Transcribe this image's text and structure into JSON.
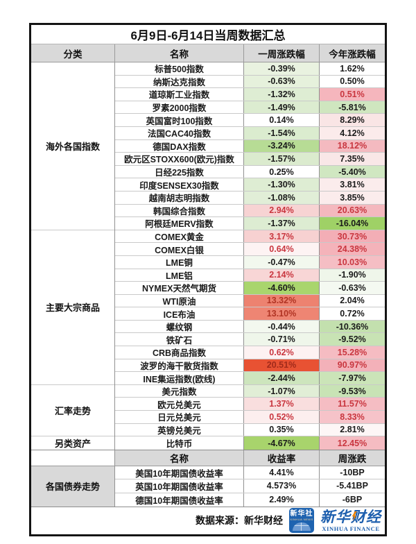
{
  "page": {
    "title": "6月9日-6月14日当周数据汇总",
    "source_note": "数据来源：新华财经"
  },
  "colors": {
    "header_bg": "#d9d9d9",
    "red_text": "#c9363f",
    "brick_text": "#b03424",
    "deep_red_text": "#a12a1a",
    "black_text": "#1a1a1a",
    "logo_blue": "#1d5fae",
    "accent_orange": "#f08300"
  },
  "main_table": {
    "headers": {
      "category": "分类",
      "name": "名称",
      "week": "一周涨跌幅",
      "year": "今年涨跌幅"
    },
    "sections": [
      {
        "label": "海外各国指数",
        "rows": [
          {
            "name": "标普500指数",
            "week": "-0.39%",
            "week_bg": "#e9f2e0",
            "year": "1.62%",
            "year_bg": "#ffffff"
          },
          {
            "name": "纳斯达克指数",
            "week": "-0.63%",
            "week_bg": "#e6f1dc",
            "year": "0.50%",
            "year_bg": "#ffffff"
          },
          {
            "name": "道琼斯工业指数",
            "week": "-1.32%",
            "week_bg": "#deedd3",
            "year": "0.51%",
            "year_bg": "#f5b6bd",
            "year_fg": "red"
          },
          {
            "name": "罗素2000指数",
            "week": "-1.49%",
            "week_bg": "#dcecd0",
            "year": "-5.81%",
            "year_bg": "#cfe6bf"
          },
          {
            "name": "英国富时100指数",
            "week": "0.14%",
            "week_bg": "#ffffff",
            "year": "8.29%",
            "year_bg": "#f9e5e5"
          },
          {
            "name": "法国CAC40指数",
            "week": "-1.54%",
            "week_bg": "#dbeccf",
            "year": "4.12%",
            "year_bg": "#fbebeb"
          },
          {
            "name": "德国DAX指数",
            "week": "-3.24%",
            "week_bg": "#b7dc95",
            "year": "18.12%",
            "year_bg": "#f4bac0",
            "year_fg": "red"
          },
          {
            "name": "欧元区STOXX600(欧元)指数",
            "week": "-1.57%",
            "week_bg": "#dbebce",
            "year": "7.35%",
            "year_bg": "#f9e7e7"
          },
          {
            "name": "日经225指数",
            "week": "0.25%",
            "week_bg": "#ffffff",
            "year": "-5.40%",
            "year_bg": "#d0e7c1"
          },
          {
            "name": "印度SENSEX30指数",
            "week": "-1.30%",
            "week_bg": "#deedd3",
            "year": "3.81%",
            "year_bg": "#fbecec"
          },
          {
            "name": "越南胡志明指数",
            "week": "-1.08%",
            "week_bg": "#e1eed7",
            "year": "3.85%",
            "year_bg": "#fbecec"
          },
          {
            "name": "韩国综合指数",
            "week": "2.94%",
            "week_bg": "#f7d3d3",
            "week_fg": "red",
            "year": "20.63%",
            "year_bg": "#f4b8be",
            "year_fg": "red"
          },
          {
            "name": "阿根廷MERV指数",
            "week": "-1.37%",
            "week_bg": "#ddecd2",
            "year": "-16.04%",
            "year_bg": "#9fd166"
          }
        ]
      },
      {
        "label": "主要大宗商品",
        "rows": [
          {
            "name": "COMEX黄金",
            "week": "3.17%",
            "week_bg": "#f7d1d1",
            "week_fg": "red",
            "year": "30.73%",
            "year_bg": "#f3aeb6",
            "year_fg": "red"
          },
          {
            "name": "COMEX白银",
            "week": "0.64%",
            "week_bg": "#fdf3f3",
            "week_fg": "red",
            "year": "24.38%",
            "year_bg": "#f4b3ba",
            "year_fg": "red"
          },
          {
            "name": "LME铜",
            "week": "-0.47%",
            "week_bg": "#f2f8ee",
            "year": "10.03%",
            "year_bg": "#f5bec4",
            "year_fg": "red"
          },
          {
            "name": "LME铝",
            "week": "2.14%",
            "week_bg": "#f8d6d6",
            "week_fg": "red",
            "year": "-1.90%",
            "year_bg": "#eff6ea"
          },
          {
            "name": "NYMEX天然气期货",
            "week": "-4.60%",
            "week_bg": "#a9d56d",
            "year": "-0.63%",
            "year_bg": "#f4f9f1"
          },
          {
            "name": "WTI原油",
            "week": "13.32%",
            "week_bg": "#ed8270",
            "week_fg": "brick",
            "year": "2.04%",
            "year_bg": "#ffffff"
          },
          {
            "name": "ICE布油",
            "week": "13.10%",
            "week_bg": "#ee8573",
            "week_fg": "brick",
            "year": "0.72%",
            "year_bg": "#ffffff"
          },
          {
            "name": "螺纹钢",
            "week": "-0.44%",
            "week_bg": "#f3f8ef",
            "year": "-10.36%",
            "year_bg": "#c3e0ae"
          },
          {
            "name": "铁矿石",
            "week": "-0.71%",
            "week_bg": "#eff6ea",
            "year": "-9.52%",
            "year_bg": "#c8e3b4"
          },
          {
            "name": "CRB商品指数",
            "week": "0.62%",
            "week_bg": "#fdf2f2",
            "week_fg": "red",
            "year": "15.28%",
            "year_bg": "#f5bcc2",
            "year_fg": "red"
          },
          {
            "name": "波罗的海干散货指数",
            "week": "20.51%",
            "week_bg": "#e85233",
            "week_fg": "deep",
            "year": "90.97%",
            "year_bg": "#f3b1b9",
            "year_fg": "red"
          },
          {
            "name": "INE集运指数(欧线)",
            "week": "-2.44%",
            "week_bg": "#cde5bd",
            "year": "-7.97%",
            "year_bg": "#cbe4b8"
          }
        ]
      },
      {
        "label": "汇率走势",
        "rows": [
          {
            "name": "美元指数",
            "week": "-1.07%",
            "week_bg": "#e1eed6",
            "year": "-9.53%",
            "year_bg": "#c8e3b5"
          },
          {
            "name": "欧元兑美元",
            "week": "1.37%",
            "week_bg": "#f9dede",
            "week_fg": "red",
            "year": "11.57%",
            "year_bg": "#f5bdc3",
            "year_fg": "red"
          },
          {
            "name": "日元兑美元",
            "week": "0.52%",
            "week_bg": "#fceeee",
            "week_fg": "red",
            "year": "8.33%",
            "year_bg": "#f6c3c9",
            "year_fg": "red"
          },
          {
            "name": "英镑兑美元",
            "week": "0.35%",
            "week_bg": "#ffffff",
            "year": "2.81%",
            "year_bg": "#fdf6f6"
          }
        ]
      },
      {
        "label": "另类资产",
        "rows": [
          {
            "name": "比特币",
            "week": "-4.67%",
            "week_bg": "#a8d46c",
            "year": "12.45%",
            "year_bg": "#f5bcc2",
            "year_fg": "red"
          }
        ]
      }
    ]
  },
  "bond_table": {
    "section_label": "各国债券走势",
    "headers": {
      "name": "名称",
      "yield": "收益率",
      "week": "周涨跌"
    },
    "rows": [
      {
        "name": "美国10年期国债收益率",
        "yield": "4.41%",
        "week_change": "-10BP"
      },
      {
        "name": "英国10年期国债收益率",
        "yield": "4.573%",
        "week_change": "-5.41BP"
      },
      {
        "name": "德国10年期国债收益率",
        "yield": "2.49%",
        "week_change": "-6BP"
      }
    ]
  },
  "logos": {
    "agency_cn": "新华社",
    "agency_en": "XINHUA NEWS",
    "finance_cn": "新华财经",
    "finance_en": "XINHUA FINANCE"
  }
}
